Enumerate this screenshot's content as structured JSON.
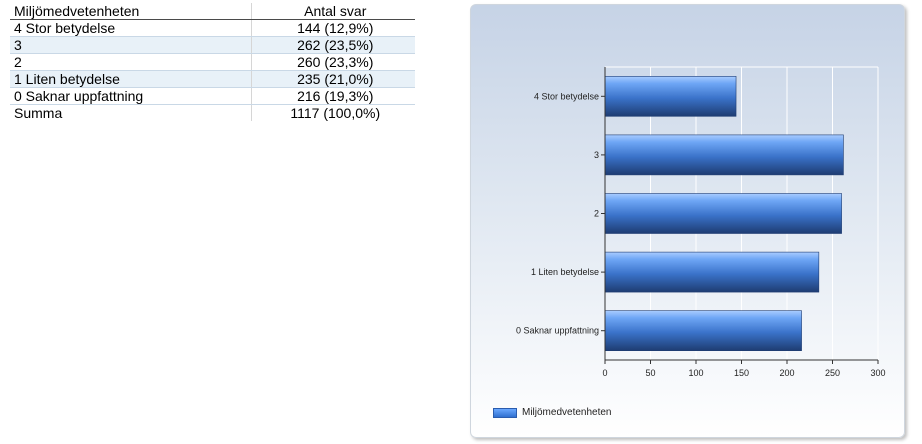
{
  "table": {
    "header": [
      "Miljömedvetenheten",
      "Antal svar"
    ],
    "rows": [
      [
        "4 Stor betydelse",
        "144 (12,9%)"
      ],
      [
        "3",
        "262 (23,5%)"
      ],
      [
        "2",
        "260 (23,3%)"
      ],
      [
        "1 Liten betydelse",
        "235 (21,0%)"
      ],
      [
        "0 Saknar uppfattning",
        "216 (19,3%)"
      ]
    ],
    "total": [
      "Summa",
      "1117 (100,0%)"
    ]
  },
  "chart_data": {
    "type": "bar",
    "orientation": "horizontal",
    "categories": [
      "4 Stor betydelse",
      "3",
      "2",
      "1 Liten betydelse",
      "0 Saknar uppfattning"
    ],
    "series": [
      {
        "name": "Miljömedvetenheten",
        "values": [
          144,
          262,
          260,
          235,
          216
        ]
      }
    ],
    "xlim": [
      0,
      300
    ],
    "xticks": [
      0,
      50,
      100,
      150,
      200,
      250,
      300
    ],
    "grid": true,
    "legend": "bottom-left",
    "colors": {
      "bar_light": "#7fb4ff",
      "bar_mid": "#3d7fdc",
      "bar_dark": "#1f3f77"
    }
  }
}
